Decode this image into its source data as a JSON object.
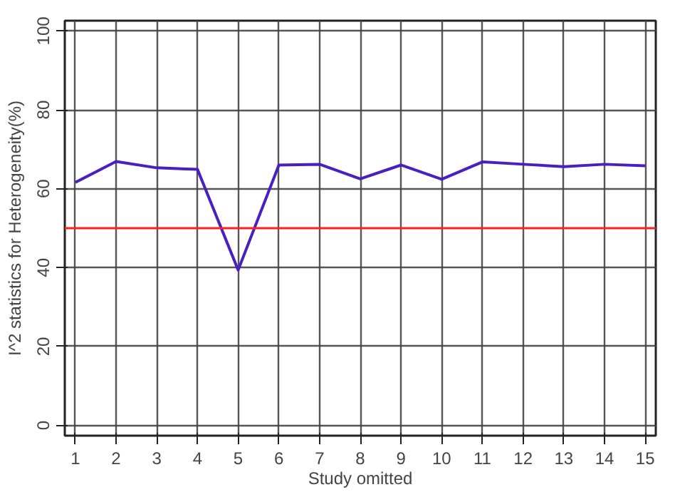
{
  "chart_data": {
    "type": "line",
    "xlabel": "Study omitted",
    "ylabel": "I^2 statistics for Heterogeneity(%)",
    "x": [
      1,
      2,
      3,
      4,
      5,
      6,
      7,
      8,
      9,
      10,
      11,
      12,
      13,
      14,
      15
    ],
    "series": [
      {
        "color": "#4a1fc0",
        "values": [
          61.6,
          66.9,
          65.3,
          64.9,
          39.4,
          66.0,
          66.2,
          62.5,
          66.0,
          62.4,
          66.8,
          66.2,
          65.6,
          66.2,
          65.8
        ]
      }
    ],
    "xlim": [
      0.74,
      15.26
    ],
    "ylim": [
      -2.6,
      102.6
    ],
    "xticks": [
      1,
      2,
      3,
      4,
      5,
      6,
      7,
      8,
      9,
      10,
      11,
      12,
      13,
      14,
      15
    ],
    "yticks": [
      0,
      20,
      40,
      60,
      80,
      100
    ],
    "ref_lines": [
      {
        "axis": "y",
        "value": 50,
        "color": "#ff2020"
      }
    ],
    "grid": true,
    "marker": "none",
    "line_style": "solid"
  }
}
